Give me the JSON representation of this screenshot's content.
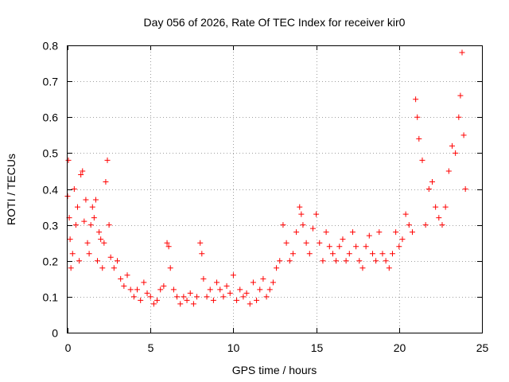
{
  "chart_data": {
    "type": "scatter",
    "title": "Day 056 of 2026, Rate Of TEC Index for receiver kir0",
    "xlabel": "GPS time / hours",
    "ylabel": "ROTI / TECUs",
    "xlim": [
      0,
      25
    ],
    "ylim": [
      0,
      0.8
    ],
    "xticks": [
      "0",
      "5",
      "10",
      "15",
      "20",
      "25"
    ],
    "yticks": [
      "0",
      "0.1",
      "0.2",
      "0.3",
      "0.4",
      "0.5",
      "0.6",
      "0.7",
      "0.8"
    ],
    "grid": true,
    "marker": "+",
    "color": "#ff0000",
    "series": [
      {
        "name": "ROTI",
        "x": [
          0.0,
          0.05,
          0.1,
          0.15,
          0.2,
          0.3,
          0.4,
          0.5,
          0.6,
          0.7,
          0.8,
          0.9,
          1.0,
          1.1,
          1.2,
          1.3,
          1.4,
          1.5,
          1.6,
          1.7,
          1.8,
          1.9,
          2.0,
          2.1,
          2.2,
          2.3,
          2.4,
          2.5,
          2.6,
          2.8,
          3.0,
          3.2,
          3.4,
          3.6,
          3.8,
          4.0,
          4.2,
          4.4,
          4.6,
          4.8,
          5.0,
          5.2,
          5.4,
          5.6,
          5.8,
          6.0,
          6.1,
          6.2,
          6.4,
          6.6,
          6.8,
          7.0,
          7.2,
          7.4,
          7.6,
          7.8,
          8.0,
          8.1,
          8.2,
          8.4,
          8.6,
          8.8,
          9.0,
          9.2,
          9.4,
          9.6,
          9.8,
          10.0,
          10.2,
          10.4,
          10.6,
          10.8,
          11.0,
          11.2,
          11.4,
          11.6,
          11.8,
          12.0,
          12.2,
          12.4,
          12.6,
          12.8,
          13.0,
          13.2,
          13.4,
          13.6,
          13.8,
          14.0,
          14.1,
          14.2,
          14.4,
          14.6,
          14.8,
          15.0,
          15.2,
          15.4,
          15.6,
          15.8,
          16.0,
          16.2,
          16.4,
          16.6,
          16.8,
          17.0,
          17.2,
          17.4,
          17.6,
          17.8,
          18.0,
          18.2,
          18.4,
          18.6,
          18.8,
          19.0,
          19.2,
          19.4,
          19.6,
          19.8,
          20.0,
          20.2,
          20.4,
          20.6,
          20.8,
          21.0,
          21.1,
          21.2,
          21.4,
          21.6,
          21.8,
          22.0,
          22.2,
          22.4,
          22.6,
          22.8,
          23.0,
          23.2,
          23.4,
          23.6,
          23.7,
          23.8,
          23.9,
          24.0
        ],
        "values": [
          0.38,
          0.48,
          0.32,
          0.26,
          0.18,
          0.22,
          0.4,
          0.3,
          0.35,
          0.2,
          0.44,
          0.45,
          0.31,
          0.37,
          0.25,
          0.22,
          0.3,
          0.35,
          0.32,
          0.37,
          0.2,
          0.28,
          0.26,
          0.18,
          0.25,
          0.42,
          0.48,
          0.3,
          0.21,
          0.18,
          0.2,
          0.15,
          0.13,
          0.16,
          0.12,
          0.1,
          0.12,
          0.09,
          0.14,
          0.11,
          0.1,
          0.08,
          0.09,
          0.12,
          0.13,
          0.25,
          0.24,
          0.18,
          0.12,
          0.1,
          0.08,
          0.1,
          0.09,
          0.11,
          0.08,
          0.1,
          0.25,
          0.22,
          0.15,
          0.1,
          0.12,
          0.09,
          0.14,
          0.12,
          0.1,
          0.13,
          0.11,
          0.16,
          0.09,
          0.12,
          0.1,
          0.11,
          0.08,
          0.14,
          0.09,
          0.12,
          0.15,
          0.1,
          0.12,
          0.14,
          0.18,
          0.2,
          0.3,
          0.25,
          0.2,
          0.22,
          0.28,
          0.35,
          0.33,
          0.3,
          0.25,
          0.22,
          0.29,
          0.33,
          0.25,
          0.2,
          0.28,
          0.24,
          0.22,
          0.2,
          0.24,
          0.26,
          0.2,
          0.22,
          0.28,
          0.24,
          0.2,
          0.18,
          0.24,
          0.27,
          0.22,
          0.2,
          0.28,
          0.22,
          0.2,
          0.18,
          0.22,
          0.28,
          0.24,
          0.26,
          0.33,
          0.3,
          0.28,
          0.65,
          0.6,
          0.54,
          0.48,
          0.3,
          0.4,
          0.42,
          0.35,
          0.32,
          0.3,
          0.35,
          0.45,
          0.52,
          0.5,
          0.6,
          0.66,
          0.78,
          0.55,
          0.4
        ]
      }
    ]
  }
}
